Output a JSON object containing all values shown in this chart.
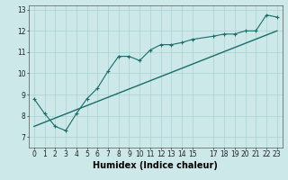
{
  "xlabel": "Humidex (Indice chaleur)",
  "ylabel": "",
  "background_color": "#cce8e8",
  "line_color": "#1a6b6b",
  "grid_color": "#aad0d0",
  "xlim": [
    -0.5,
    23.5
  ],
  "ylim": [
    6.5,
    13.2
  ],
  "yticks": [
    7,
    8,
    9,
    10,
    11,
    12,
    13
  ],
  "xticks": [
    0,
    1,
    2,
    3,
    4,
    5,
    6,
    7,
    8,
    9,
    10,
    11,
    12,
    13,
    14,
    15,
    17,
    18,
    19,
    20,
    21,
    22,
    23
  ],
  "xtick_labels": [
    "0",
    "1",
    "2",
    "3",
    "4",
    "5",
    "6",
    "7",
    "8",
    "9",
    "10",
    "11",
    "12",
    "13",
    "14",
    "15",
    "17",
    "18",
    "19",
    "20",
    "21",
    "22",
    "23"
  ],
  "line1_x": [
    0,
    1,
    2,
    3,
    4,
    5,
    6,
    7,
    8,
    9,
    10,
    11,
    12,
    13,
    14,
    15,
    17,
    18,
    19,
    20,
    21,
    22,
    23
  ],
  "line1_y": [
    8.8,
    8.1,
    7.5,
    7.3,
    8.1,
    8.8,
    9.3,
    10.1,
    10.8,
    10.8,
    10.6,
    11.1,
    11.35,
    11.35,
    11.45,
    11.6,
    11.75,
    11.85,
    11.85,
    12.0,
    12.0,
    12.75,
    12.65
  ],
  "line2_x": [
    0,
    23
  ],
  "line2_y": [
    7.5,
    12.0
  ],
  "axis_fontsize": 6.5,
  "tick_fontsize": 5.5,
  "xlabel_fontsize": 7
}
